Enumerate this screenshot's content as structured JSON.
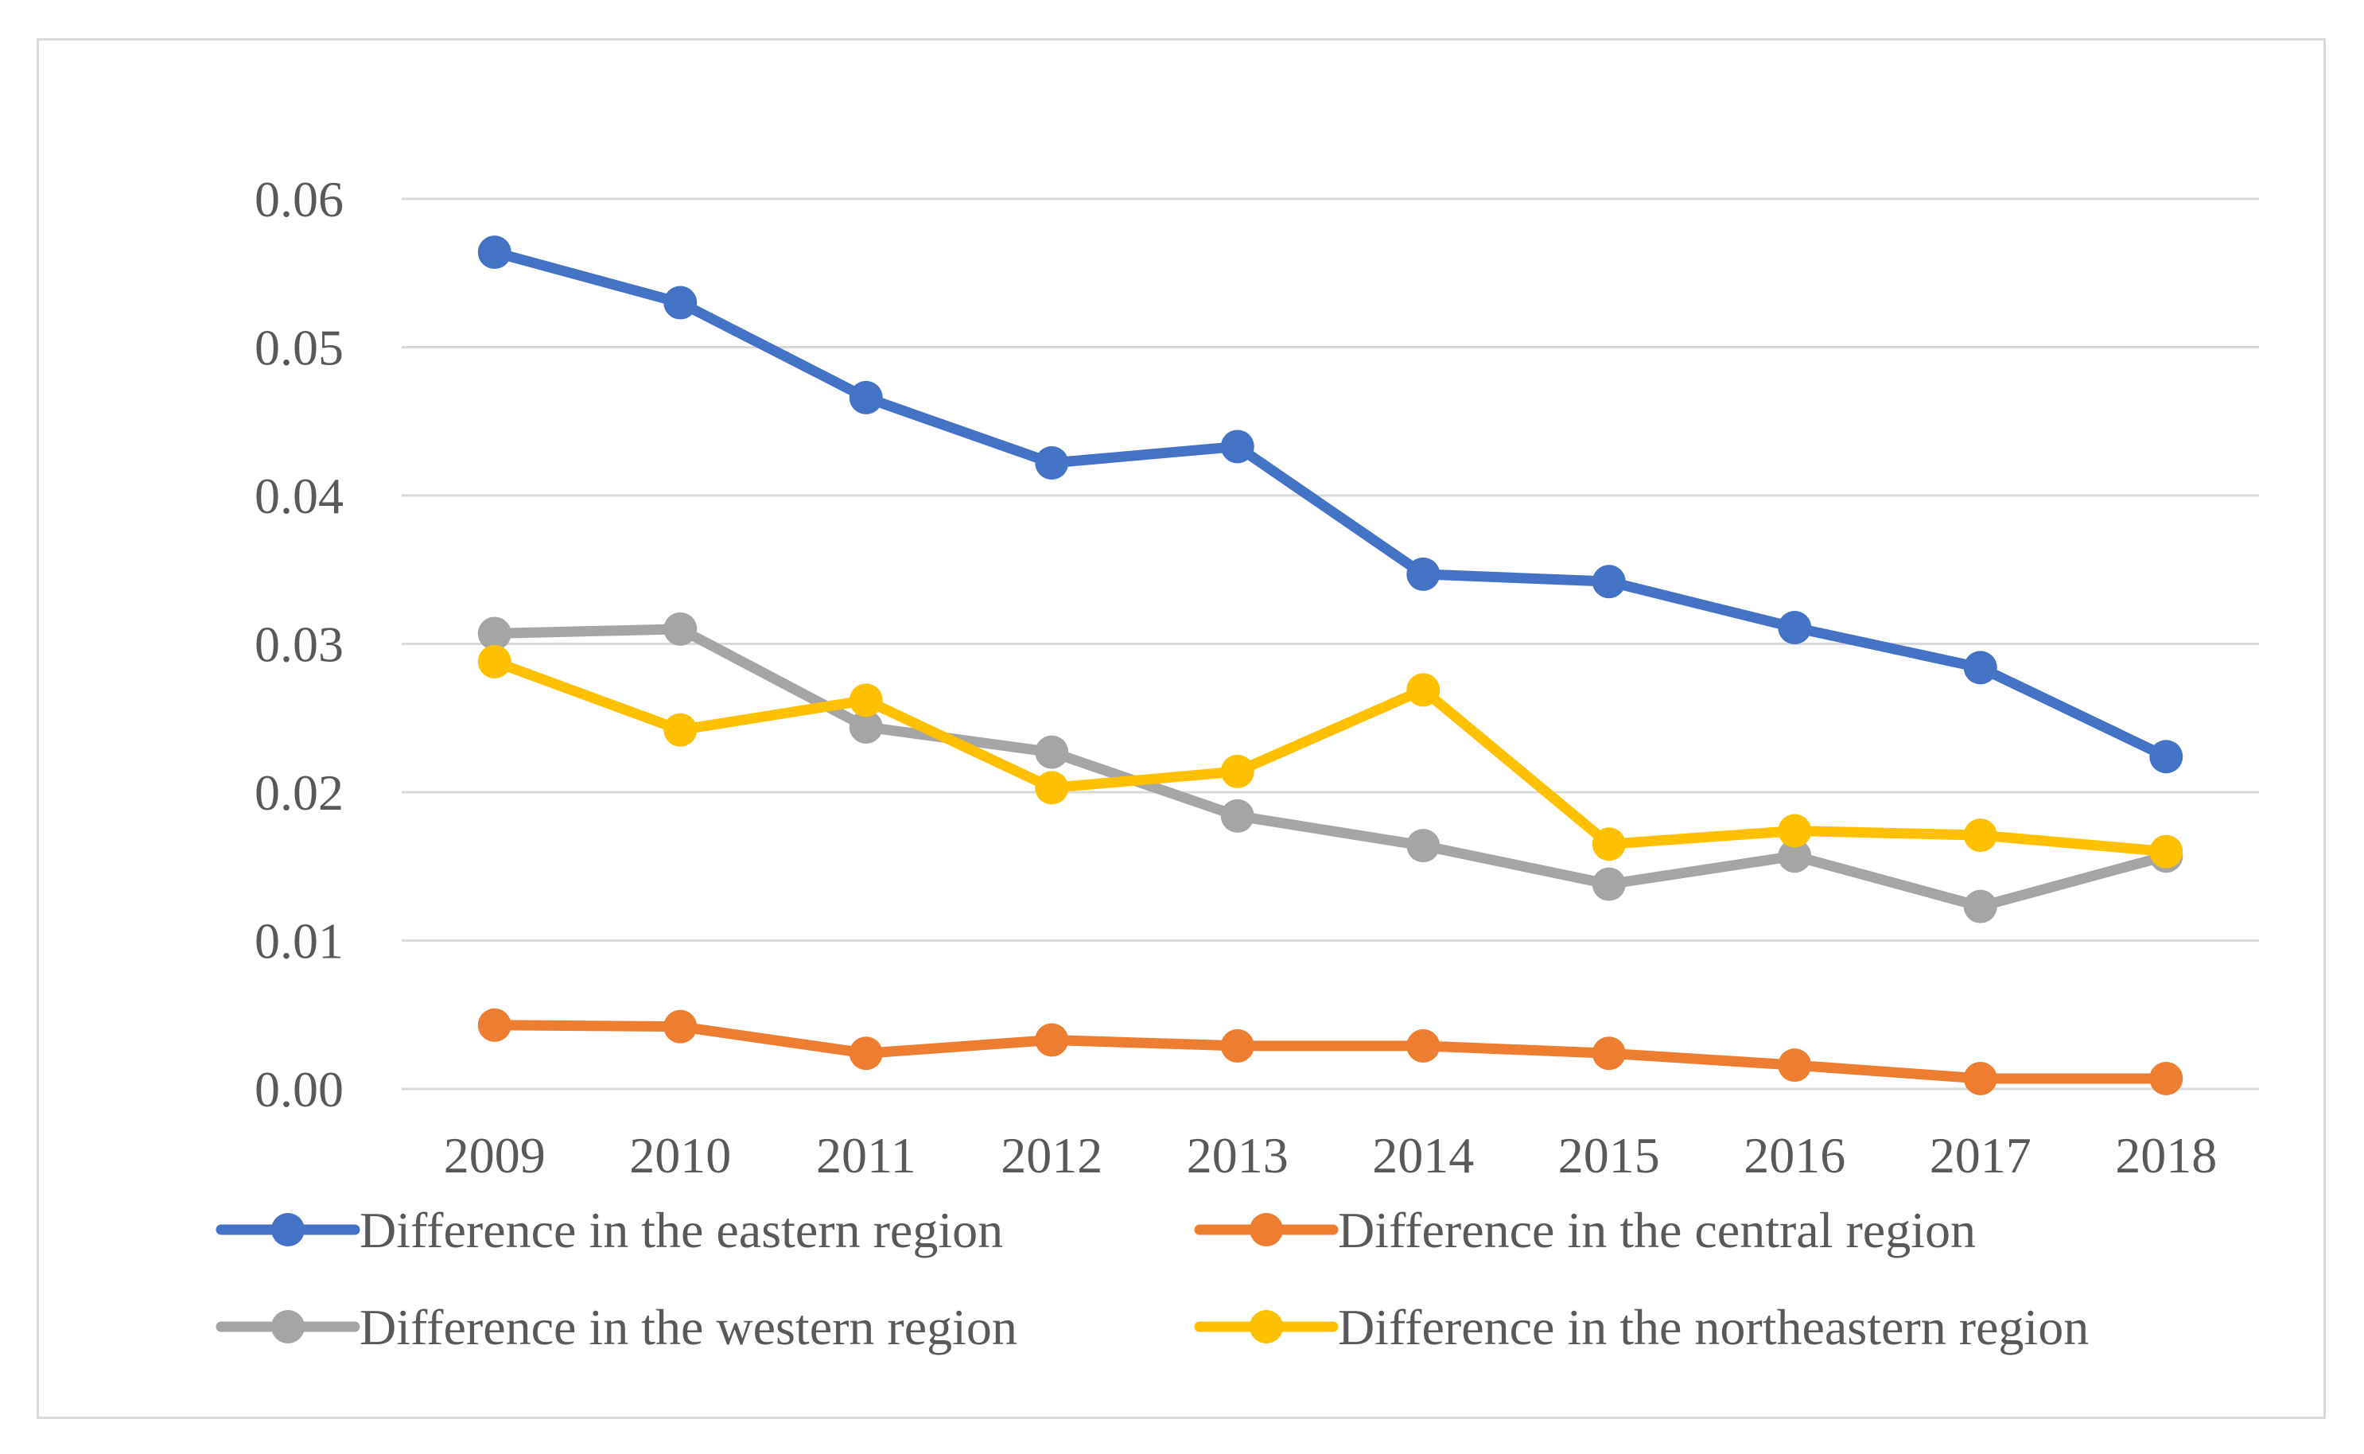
{
  "chart_data": {
    "type": "line",
    "title": "",
    "xlabel": "",
    "ylabel": "",
    "categories": [
      "2009",
      "2010",
      "2011",
      "2012",
      "2013",
      "2014",
      "2015",
      "2016",
      "2017",
      "2018"
    ],
    "ylim": [
      0,
      0.06
    ],
    "yticks": [
      "0.00",
      "0.01",
      "0.02",
      "0.03",
      "0.04",
      "0.05",
      "0.06"
    ],
    "grid": true,
    "legend_position": "bottom",
    "series": [
      {
        "name": "Difference in the eastern region",
        "color": "#4472C4",
        "values": [
          0.0564,
          0.053,
          0.0466,
          0.0422,
          0.0433,
          0.0347,
          0.0342,
          0.0311,
          0.0284,
          0.0224
        ]
      },
      {
        "name": "Difference in the central region",
        "color": "#ED7D31",
        "values": [
          0.0043,
          0.0042,
          0.0024,
          0.0033,
          0.0029,
          0.0029,
          0.0024,
          0.0016,
          0.0007,
          0.0007
        ]
      },
      {
        "name": "Difference in the western region",
        "color": "#A5A5A5",
        "values": [
          0.0307,
          0.031,
          0.0244,
          0.0227,
          0.0184,
          0.0164,
          0.0138,
          0.0157,
          0.0123,
          0.0157
        ]
      },
      {
        "name": "Difference in the northeastern region",
        "color": "#FFC000",
        "values": [
          0.0288,
          0.0242,
          0.0262,
          0.0203,
          0.0214,
          0.0269,
          0.0165,
          0.0174,
          0.0171,
          0.016
        ]
      }
    ]
  }
}
